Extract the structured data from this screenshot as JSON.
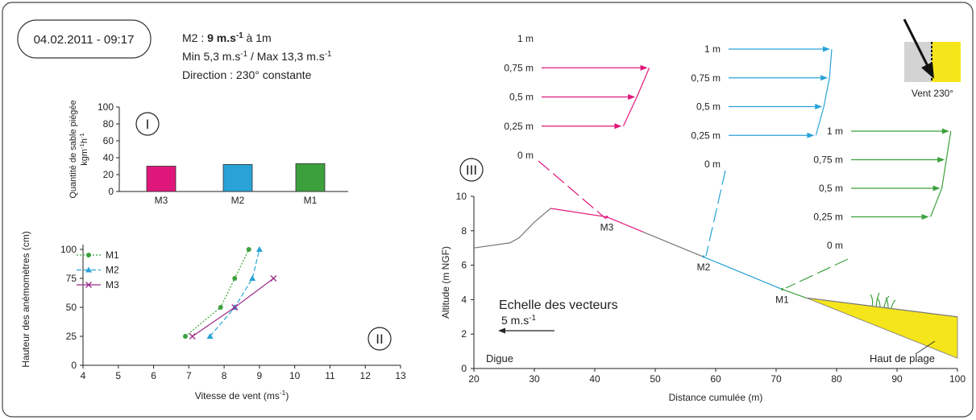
{
  "header": {
    "timestamp": "04.02.2011 - 09:17",
    "wind_lines": [
      [
        {
          "text": "M2 : "
        },
        {
          "text": "9 m.s",
          "bold": true
        },
        {
          "text": "-1",
          "sup": true,
          "bold": true
        },
        {
          "text": " à 1m"
        }
      ],
      [
        {
          "text": "Min 5,3 m.s"
        },
        {
          "text": "-1",
          "sup": true
        },
        {
          "text": " / Max 13,3 m.s"
        },
        {
          "text": "-1",
          "sup": true
        }
      ],
      [
        {
          "text": "Direction : 230° constante"
        }
      ]
    ]
  },
  "wind_icon": {
    "label": "Vent 230°"
  },
  "chart_data": [
    {
      "type": "bar",
      "panel": "I",
      "ylabel": "Quantité de sable piégée",
      "ylabel_unit": [
        {
          "text": "kgm"
        },
        {
          "text": "-1",
          "sup": true
        },
        {
          "text": "h"
        },
        {
          "text": "-1",
          "sup": true
        }
      ],
      "categories": [
        "M3",
        "M2",
        "M1"
      ],
      "values": [
        30,
        32,
        33
      ],
      "colors": [
        "#e0177b",
        "#29a3d6",
        "#3ca13c"
      ],
      "ylim": [
        0,
        100
      ],
      "yticks": [
        0,
        20,
        40,
        60,
        80,
        100
      ]
    },
    {
      "type": "line",
      "panel": "II",
      "xlabel": [
        {
          "text": "Vitesse de vent (ms"
        },
        {
          "text": "-1",
          "sup": true
        },
        {
          "text": ")"
        }
      ],
      "ylabel": "Hauteur des anémomètres (cm)",
      "xlim": [
        4,
        13
      ],
      "xticks": [
        4,
        5,
        6,
        7,
        8,
        9,
        10,
        11,
        12,
        13
      ],
      "ylim": [
        0,
        100
      ],
      "yticks": [
        0,
        25,
        50,
        75,
        100
      ],
      "legend": "top-left",
      "series": [
        {
          "name": "M1",
          "color": "#3ca13c",
          "dash": "dotted",
          "marker": "circle",
          "x": [
            6.9,
            7.9,
            8.3,
            8.7
          ],
          "values": [
            25,
            50,
            75,
            100
          ]
        },
        {
          "name": "M2",
          "color": "#29a3d6",
          "dash": "dashed",
          "marker": "triangle",
          "x": [
            7.6,
            8.3,
            8.8,
            9.0
          ],
          "values": [
            25,
            50,
            75,
            100
          ]
        },
        {
          "name": "M3",
          "color": "#9b2d8a",
          "dash": "solid",
          "marker": "cross",
          "x": [
            7.1,
            8.3,
            9.4
          ],
          "values": [
            25,
            50,
            75
          ]
        }
      ]
    },
    {
      "type": "profile",
      "panel": "III",
      "xlabel": "Distance cumulée (m)",
      "ylabel": "Altitude (m NGF)",
      "xlim": [
        20,
        100
      ],
      "xticks": [
        20,
        30,
        40,
        50,
        60,
        70,
        80,
        90,
        100
      ],
      "ylim": [
        0,
        10
      ],
      "yticks": [
        0,
        2,
        4,
        6,
        8,
        10
      ],
      "series": [
        {
          "color": "#777777",
          "x": [
            20,
            26,
            27.5,
            30,
            32.7
          ],
          "values": [
            7.0,
            7.3,
            7.6,
            8.5,
            9.3
          ]
        },
        {
          "color": "#e0177b",
          "x": [
            32.7,
            42,
            48
          ],
          "values": [
            9.3,
            8.8,
            7.93
          ]
        },
        {
          "color": "#777777",
          "x": [
            48,
            58
          ],
          "values": [
            7.93,
            6.48
          ]
        },
        {
          "color": "#29a3d6",
          "x": [
            58,
            71
          ],
          "values": [
            6.48,
            4.6
          ]
        },
        {
          "color": "#3ca13c",
          "x": [
            71,
            75
          ],
          "values": [
            4.6,
            4.1
          ]
        },
        {
          "color": "#777777",
          "x": [
            75,
            100
          ],
          "values": [
            4.1,
            3.0
          ]
        }
      ],
      "beach": {
        "color": "#f5e51b",
        "x": [
          75,
          100
        ],
        "upper": [
          4.1,
          3.0
        ],
        "lower": [
          4.1,
          0.6
        ]
      },
      "stations": {
        "names": [
          "M3",
          "M2",
          "M1"
        ],
        "colors": [
          "#e0177b",
          "#29a3d6",
          "#3ca13c"
        ],
        "x": [
          42,
          58,
          71
        ],
        "values": [
          8.8,
          6.5,
          4.6
        ]
      },
      "annotations": {
        "dike": "Digue",
        "beach": "Haut de plage"
      },
      "scale": {
        "title": "Echelle des vecteurs",
        "unit": [
          {
            "text": "5 m.s"
          },
          {
            "text": "-1",
            "sup": true
          }
        ]
      },
      "insets": [
        {
          "color": "#e0177b",
          "ylim": [
            0,
            1
          ],
          "yticks": [
            {
              "value": 0,
              "label": "0 m"
            },
            {
              "value": 0.25,
              "label": "0,25 m"
            },
            {
              "value": 0.5,
              "label": "0,5 m"
            },
            {
              "value": 0.75,
              "label": "0,75 m"
            },
            {
              "value": 1,
              "label": "1 m"
            }
          ],
          "heights": [
            0.25,
            0.5,
            0.75
          ],
          "speeds": [
            7.1,
            8.3,
            9.4
          ]
        },
        {
          "color": "#29a3d6",
          "ylim": [
            0,
            1
          ],
          "yticks": [
            {
              "value": 0,
              "label": "0 m"
            },
            {
              "value": 0.25,
              "label": "0,25 m"
            },
            {
              "value": 0.5,
              "label": "0,5 m"
            },
            {
              "value": 0.75,
              "label": "0,75 m"
            },
            {
              "value": 1,
              "label": "1 m"
            }
          ],
          "heights": [
            0.25,
            0.5,
            0.75,
            1
          ],
          "speeds": [
            7.6,
            8.3,
            8.8,
            9.0
          ]
        },
        {
          "color": "#3ca13c",
          "ylim": [
            0,
            1
          ],
          "yticks": [
            {
              "value": 0,
              "label": "0 m"
            },
            {
              "value": 0.25,
              "label": "0,25 m"
            },
            {
              "value": 0.5,
              "label": "0,5 m"
            },
            {
              "value": 0.75,
              "label": "0,75 m"
            },
            {
              "value": 1,
              "label": "1 m"
            }
          ],
          "heights": [
            0.25,
            0.5,
            0.75,
            1
          ],
          "speeds": [
            6.9,
            7.9,
            8.3,
            8.7
          ]
        }
      ]
    }
  ]
}
